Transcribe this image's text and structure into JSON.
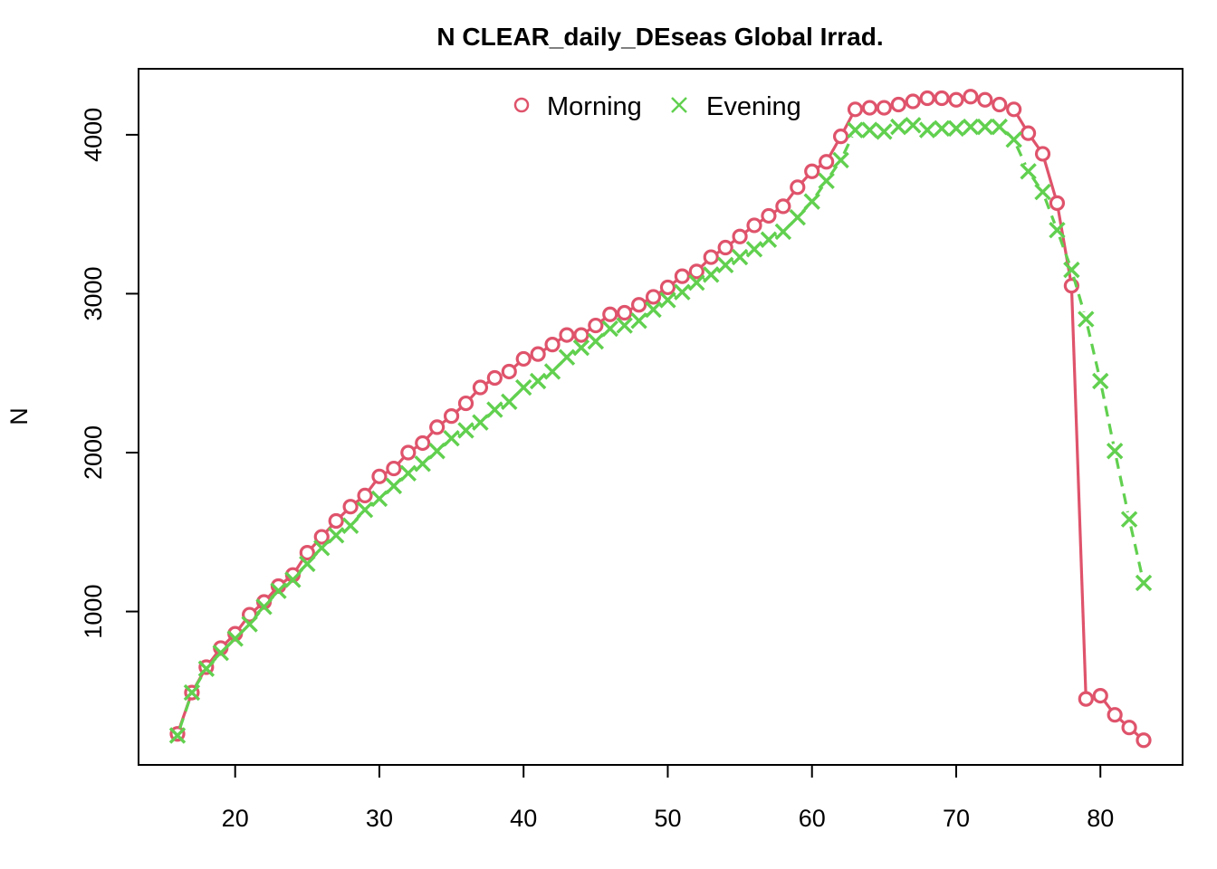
{
  "chart_data": {
    "type": "line",
    "title": "N CLEAR_daily_DEseas Global Irrad.",
    "xlabel": "",
    "ylabel": "N",
    "xlim": [
      16,
      83
    ],
    "ylim": [
      200,
      4250
    ],
    "x_ticks": [
      20,
      30,
      40,
      50,
      60,
      70,
      80
    ],
    "y_ticks": [
      1000,
      2000,
      3000,
      4000
    ],
    "legend_position": "top-center",
    "grid": false,
    "x": [
      16,
      17,
      18,
      19,
      20,
      21,
      22,
      23,
      24,
      25,
      26,
      27,
      28,
      29,
      30,
      31,
      32,
      33,
      34,
      35,
      36,
      37,
      38,
      39,
      40,
      41,
      42,
      43,
      44,
      45,
      46,
      47,
      48,
      49,
      50,
      51,
      52,
      53,
      54,
      55,
      56,
      57,
      58,
      59,
      60,
      61,
      62,
      63,
      64,
      65,
      66,
      67,
      68,
      69,
      70,
      71,
      72,
      73,
      74,
      75,
      76,
      77,
      78,
      79,
      80,
      81,
      82,
      83
    ],
    "series": [
      {
        "name": "Morning",
        "color": "#DF536B",
        "marker": "circle",
        "line_style": "solid",
        "values": [
          230,
          490,
          650,
          770,
          860,
          980,
          1060,
          1160,
          1230,
          1370,
          1470,
          1570,
          1660,
          1730,
          1850,
          1900,
          2000,
          2060,
          2160,
          2230,
          2310,
          2410,
          2470,
          2510,
          2590,
          2620,
          2680,
          2740,
          2740,
          2800,
          2870,
          2880,
          2930,
          2980,
          3040,
          3110,
          3140,
          3230,
          3290,
          3360,
          3430,
          3490,
          3550,
          3670,
          3770,
          3830,
          3990,
          4160,
          4170,
          4170,
          4190,
          4210,
          4230,
          4230,
          4220,
          4240,
          4220,
          4190,
          4160,
          4010,
          3880,
          3570,
          3050,
          450,
          470,
          350,
          270,
          190
        ]
      },
      {
        "name": "Evening",
        "color": "#61D04F",
        "marker": "cross",
        "line_style": "dashed",
        "values": [
          220,
          490,
          640,
          740,
          830,
          920,
          1030,
          1130,
          1200,
          1300,
          1400,
          1480,
          1540,
          1640,
          1710,
          1790,
          1870,
          1930,
          2010,
          2090,
          2140,
          2190,
          2270,
          2320,
          2410,
          2450,
          2510,
          2600,
          2660,
          2700,
          2780,
          2800,
          2830,
          2900,
          2960,
          3010,
          3070,
          3120,
          3180,
          3230,
          3280,
          3340,
          3390,
          3480,
          3580,
          3710,
          3840,
          4030,
          4030,
          4020,
          4050,
          4060,
          4030,
          4040,
          4040,
          4050,
          4050,
          4050,
          3970,
          3770,
          3640,
          3400,
          3150,
          2840,
          2450,
          2010,
          1580,
          1180
        ]
      }
    ]
  }
}
